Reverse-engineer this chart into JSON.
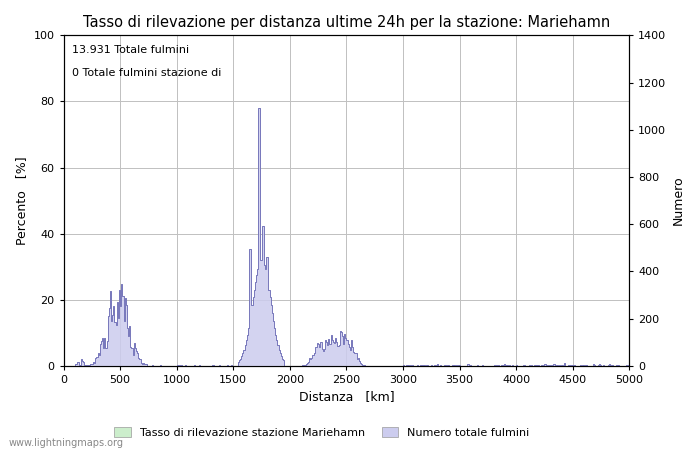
{
  "title": "Tasso di rilevazione per distanza ultime 24h per la stazione: Mariehamn",
  "xlabel": "Distanza   [km]",
  "ylabel_left": "Percento   [%]",
  "ylabel_right": "Numero",
  "annotation_line1": "13.931 Totale fulmini",
  "annotation_line2": "0 Totale fulmini stazione di",
  "legend_green": "Tasso di rilevazione stazione Mariehamn",
  "legend_blue": "Numero totale fulmini",
  "watermark": "www.lightningmaps.org",
  "xlim": [
    0,
    5000
  ],
  "ylim_left": [
    0,
    100
  ],
  "ylim_right": [
    0,
    1400
  ],
  "yticks_left": [
    0,
    20,
    40,
    60,
    80,
    100
  ],
  "yticks_right": [
    0,
    200,
    400,
    600,
    800,
    1000,
    1200,
    1400
  ],
  "xticks": [
    0,
    500,
    1000,
    1500,
    2000,
    2500,
    3000,
    3500,
    4000,
    4500,
    5000
  ],
  "bg_color": "#ffffff",
  "plot_bg_color": "#ffffff",
  "grid_color": "#c0c0c0",
  "line_color": "#7777bb",
  "fill_blue_color": "#ccccee",
  "fill_green_color": "#cceecc",
  "title_fontsize": 10.5,
  "axis_fontsize": 9,
  "tick_fontsize": 8
}
